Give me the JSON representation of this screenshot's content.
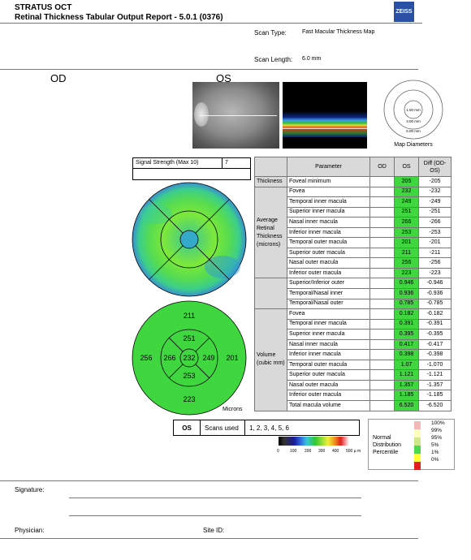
{
  "header": {
    "line1": "STRATUS OCT",
    "line2": "Retinal Thickness Tabular Output Report - 5.0.1 (0376)",
    "logo": "ZEISS",
    "scan_type_label": "Scan Type:",
    "scan_type_value": "Fast Macular Thickness Map",
    "scan_length_label": "Scan Length:",
    "scan_length_value": "6.0 mm"
  },
  "eyes": {
    "od": "OD",
    "os": "OS"
  },
  "map_diameters": {
    "r1": "1.00 mm",
    "r2": "3.00 mm",
    "r3": "6.00 mm",
    "caption": "Map Diameters"
  },
  "signal": {
    "label": "Signal Strength (Max 10)",
    "value": "7"
  },
  "table": {
    "headers": {
      "parameter": "Parameter",
      "od": "OD",
      "os": "OS",
      "diff": "Diff (OD-OS)"
    },
    "groups": {
      "thickness": "Thickness",
      "average": "Average Retinal Thickness (microns)",
      "volume": "Volume (cubic mm)"
    },
    "rows": [
      {
        "param": "Foveal minimum",
        "os": "205",
        "diff": "-205"
      },
      {
        "param": "Fovea",
        "os": "232",
        "diff": "-232"
      },
      {
        "param": "Temporal inner macula",
        "os": "249",
        "diff": "-249"
      },
      {
        "param": "Superior inner macula",
        "os": "251",
        "diff": "-251"
      },
      {
        "param": "Nasal inner macula",
        "os": "266",
        "diff": "-266"
      },
      {
        "param": "Inferior inner macula",
        "os": "253",
        "diff": "-253"
      },
      {
        "param": "Temporal outer macula",
        "os": "201",
        "diff": "-201"
      },
      {
        "param": "Superior outer macula",
        "os": "211",
        "diff": "-211"
      },
      {
        "param": "Nasal outer macula",
        "os": "256",
        "diff": "-256"
      },
      {
        "param": "Inferior outer macula",
        "os": "223",
        "diff": "-223"
      },
      {
        "param": "Superior/Inferior outer",
        "os": "0.946",
        "diff": "-0.946"
      },
      {
        "param": "Temporal/Nasal inner",
        "os": "0.936",
        "diff": "-0.936"
      },
      {
        "param": "Temporal/Nasal outer",
        "os": "0.785",
        "diff": "-0.785"
      },
      {
        "param": "Fovea",
        "os": "0.182",
        "diff": "-0.182"
      },
      {
        "param": "Temporal inner macula",
        "os": "0.391",
        "diff": "-0.391"
      },
      {
        "param": "Superior inner macula",
        "os": "0.395",
        "diff": "-0.395"
      },
      {
        "param": "Nasal inner macula",
        "os": "0.417",
        "diff": "-0.417"
      },
      {
        "param": "Inferior inner macula",
        "os": "0.398",
        "diff": "-0.398"
      },
      {
        "param": "Temporal outer macula",
        "os": "1.07",
        "diff": "-1.070"
      },
      {
        "param": "Superior outer macula",
        "os": "1.121",
        "diff": "-1.121"
      },
      {
        "param": "Nasal outer macula",
        "os": "1.357",
        "diff": "-1.357"
      },
      {
        "param": "Inferior outer macula",
        "os": "1.185",
        "diff": "-1.185"
      },
      {
        "param": "Total macula volume",
        "os": "6.520",
        "diff": "-6.520"
      }
    ]
  },
  "sector_values": {
    "outer_superior": "211",
    "inner_superior": "251",
    "outer_temporal": "256",
    "inner_temporal": "266",
    "center": "232",
    "inner_nasal": "249",
    "outer_nasal": "201",
    "inner_inferior": "253",
    "outer_inferior": "223",
    "units": "Microns"
  },
  "scans": {
    "eye": "OS",
    "label": "Scans used",
    "value": "1, 2, 3, 4, 5, 6"
  },
  "colorbar_ticks": [
    "0",
    "100",
    "200",
    "300",
    "400",
    "500 µ m"
  ],
  "legend": {
    "title": "Normal Distribution Percentile",
    "levels": [
      "100%",
      "99%",
      "95%",
      "5%",
      "1%",
      "0%"
    ],
    "colors": [
      "#f5b8b8",
      "#ffffc0",
      "#cfe98a",
      "#4fd84f",
      "#ffff33",
      "#e02020"
    ]
  },
  "footer": {
    "signature": "Signature:",
    "physician": "Physician:",
    "site_id": "Site ID:"
  }
}
